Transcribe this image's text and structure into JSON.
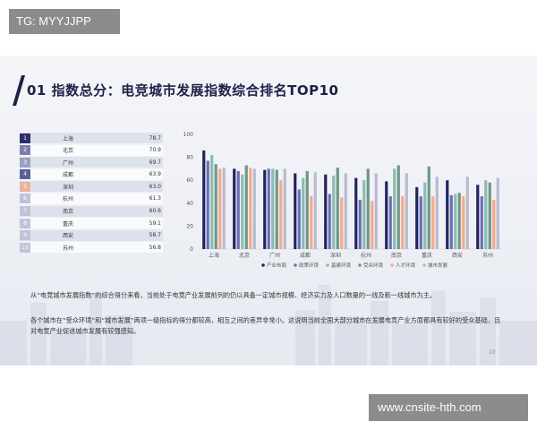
{
  "watermark_top": "TG: MYYJJPP",
  "watermark_bottom": "www.cnsite-hth.com",
  "slide_title": "01 指数总分：电竞城市发展指数综合排名TOP10",
  "ranking": [
    {
      "rank": "1",
      "city": "上海",
      "score": "78.7"
    },
    {
      "rank": "2",
      "city": "北京",
      "score": "70.9"
    },
    {
      "rank": "3",
      "city": "广州",
      "score": "69.7"
    },
    {
      "rank": "4",
      "city": "成都",
      "score": "63.9"
    },
    {
      "rank": "5",
      "city": "深圳",
      "score": "63.0"
    },
    {
      "rank": "6",
      "city": "杭州",
      "score": "61.3"
    },
    {
      "rank": "7",
      "city": "南京",
      "score": "60.6"
    },
    {
      "rank": "8",
      "city": "重庆",
      "score": "59.1"
    },
    {
      "rank": "9",
      "city": "西安",
      "score": "58.7"
    },
    {
      "rank": "10",
      "city": "苏州",
      "score": "56.8"
    }
  ],
  "colors": {
    "rank_badges": [
      "#2b2f6b",
      "#7a7fae",
      "#9c9fc0",
      "#5a5f9a",
      "#e9b39a",
      "#c0c3d8",
      "#c0c3d8",
      "#c0c3d8",
      "#c0c3d8",
      "#c0c3d8"
    ],
    "title": "#1c2146"
  },
  "chart_data": {
    "type": "bar",
    "categories": [
      "上海",
      "北京",
      "广州",
      "成都",
      "深圳",
      "杭州",
      "南京",
      "重庆",
      "西安",
      "苏州"
    ],
    "ylim": [
      0,
      100
    ],
    "yticks": [
      0,
      20,
      40,
      60,
      80,
      100
    ],
    "grid": false,
    "legend_position": "bottom",
    "series": [
      {
        "name": "产业布局",
        "color": "#24245e",
        "values": [
          86,
          70,
          69,
          66,
          65,
          62,
          59,
          54,
          60,
          56
        ]
      },
      {
        "name": "政策环境",
        "color": "#6a6fb5",
        "values": [
          77,
          68,
          70,
          52,
          48,
          43,
          46,
          46,
          47,
          46
        ]
      },
      {
        "name": "基建环境",
        "color": "#8cbcb2",
        "values": [
          82,
          65,
          70,
          62,
          64,
          60,
          70,
          58,
          48,
          60
        ]
      },
      {
        "name": "受众环境",
        "color": "#6f9688",
        "values": [
          74,
          73,
          69,
          68,
          71,
          70,
          73,
          72,
          49,
          58
        ]
      },
      {
        "name": "人才环境",
        "color": "#f4ab88",
        "values": [
          70,
          71,
          60,
          46,
          45,
          42,
          46,
          46,
          46,
          43
        ]
      },
      {
        "name": "城市发展",
        "color": "#b8bacd",
        "values": [
          71,
          70,
          70,
          67,
          66,
          66,
          66,
          63,
          63,
          62
        ]
      }
    ]
  },
  "paragraph1": "从“电竞城市发展指数”的综合得分来看，当前处于电竞产业发展前列的仍以具备一定城市规模、经济实力及人口数量的一线及新一线城市为主。",
  "paragraph2": "各个城市在“受众环境”和“城市发展”两项一级指标的得分都较高，相互之间的差异非常小。这说明当前全国大部分城市在发展电竞产业方面都具有较好的受众基础，且对电竞产业促进城市发展有较强感知。",
  "page_number": "10"
}
